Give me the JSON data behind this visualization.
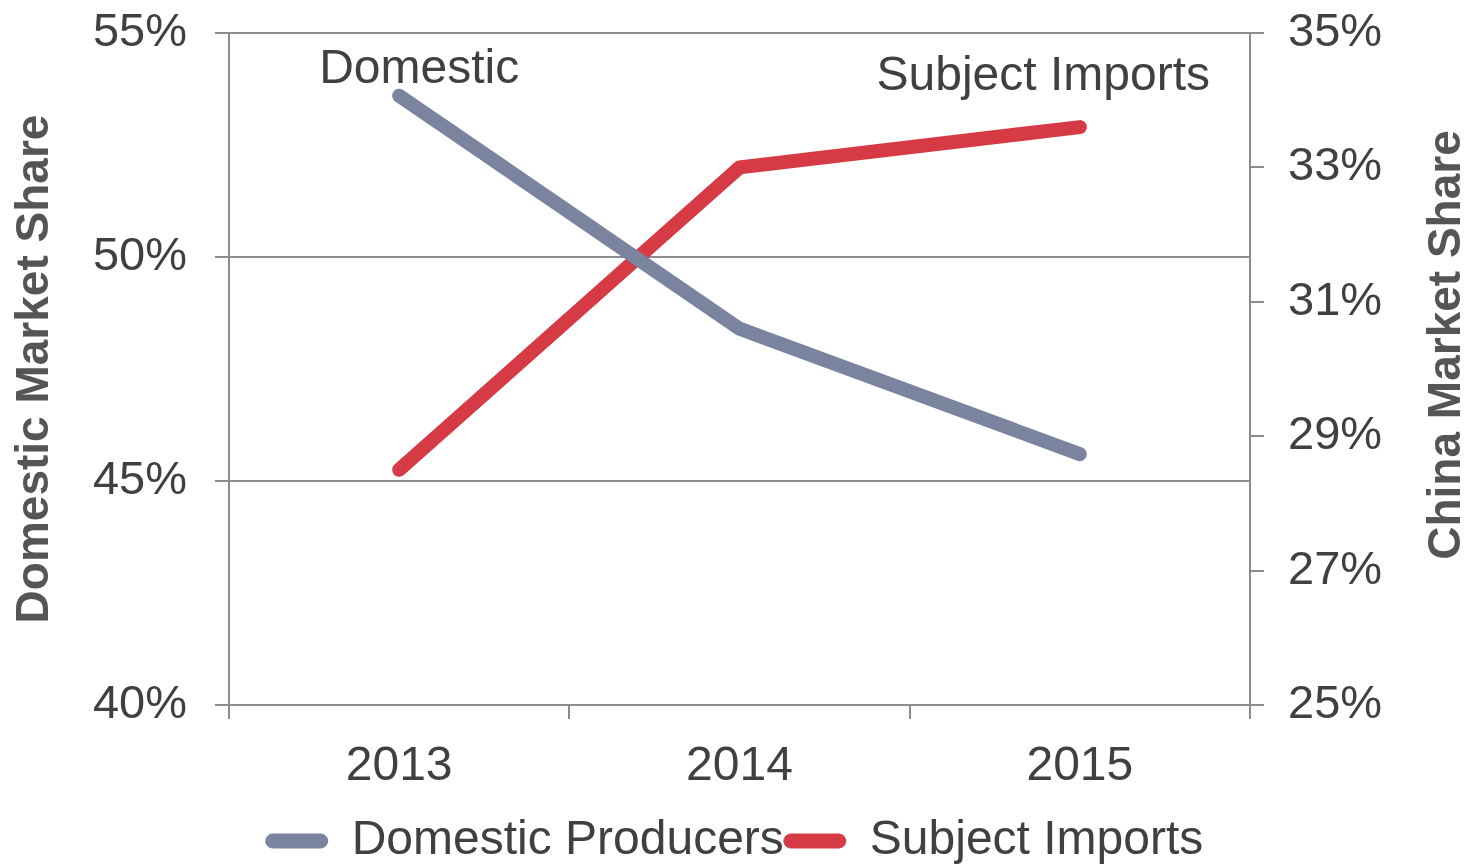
{
  "chart_data": {
    "type": "line",
    "categories": [
      "2013",
      "2014",
      "2015"
    ],
    "series": [
      {
        "name": "Domestic Producers",
        "color": "#7b849f",
        "values": [
          53.6,
          48.4,
          45.6
        ]
      },
      {
        "name": "Subject Imports",
        "color": "#d63a44",
        "values": [
          28.5,
          33.0,
          33.6
        ],
        "axis": "y2"
      }
    ],
    "ylabel": "Domestic Market Share",
    "y2label": "China Market Share",
    "ylim": [
      40,
      55
    ],
    "yticks": [
      {
        "value": 40,
        "label": "40%"
      },
      {
        "value": 45,
        "label": "45%"
      },
      {
        "value": 50,
        "label": "50%"
      },
      {
        "value": 55,
        "label": "55%"
      }
    ],
    "y2lim": [
      25,
      35
    ],
    "y2ticks": [
      {
        "value": 25,
        "label": "25%"
      },
      {
        "value": 27,
        "label": "27%"
      },
      {
        "value": 29,
        "label": "29%"
      },
      {
        "value": 31,
        "label": "31%"
      },
      {
        "value": 33,
        "label": "33%"
      },
      {
        "value": 35,
        "label": "35%"
      }
    ],
    "annotations": [
      "Domestic",
      "Subject Imports"
    ],
    "grid": "y",
    "legend": "bottom",
    "marker": "none",
    "line_style": "solid"
  }
}
